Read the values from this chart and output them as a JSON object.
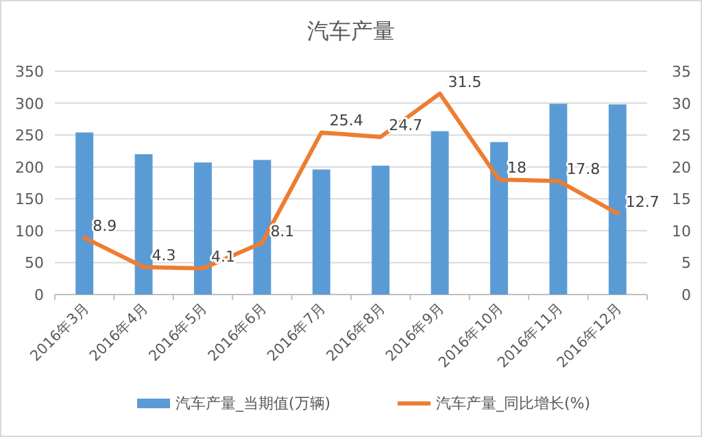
{
  "chart_data": {
    "type": "bar",
    "title": "汽车产量",
    "categories": [
      "2016年3月",
      "2016年4月",
      "2016年5月",
      "2016年6月",
      "2016年7月",
      "2016年8月",
      "2016年9月",
      "2016年10月",
      "2016年11月",
      "2016年12月"
    ],
    "series": [
      {
        "name": "汽车产量_当期值(万辆)",
        "color": "#5b9bd5",
        "values": [
          254,
          220,
          207,
          211,
          196,
          202,
          256,
          239,
          299,
          298
        ]
      },
      {
        "name": "汽车产量_同比增长(%)",
        "type": "line",
        "axis": "y2",
        "color": "#ed7d31",
        "values": [
          8.9,
          4.3,
          4.1,
          8.1,
          25.4,
          24.7,
          31.5,
          18,
          17.8,
          12.7
        ],
        "value_labels": [
          "8.9",
          "4.3",
          "4.1",
          "8.1",
          "25.4",
          "24.7",
          "31.5",
          "18",
          "17.8",
          "12.7"
        ]
      }
    ],
    "ylim": [
      0,
      350
    ],
    "yticks": [
      0,
      50,
      100,
      150,
      200,
      250,
      300,
      350
    ],
    "y2lim": [
      0,
      35
    ],
    "y2ticks": [
      0,
      5,
      10,
      15,
      20,
      25,
      30,
      35
    ],
    "grid": "y",
    "legend": "bottom",
    "marker": "none",
    "line_style": "solid"
  }
}
